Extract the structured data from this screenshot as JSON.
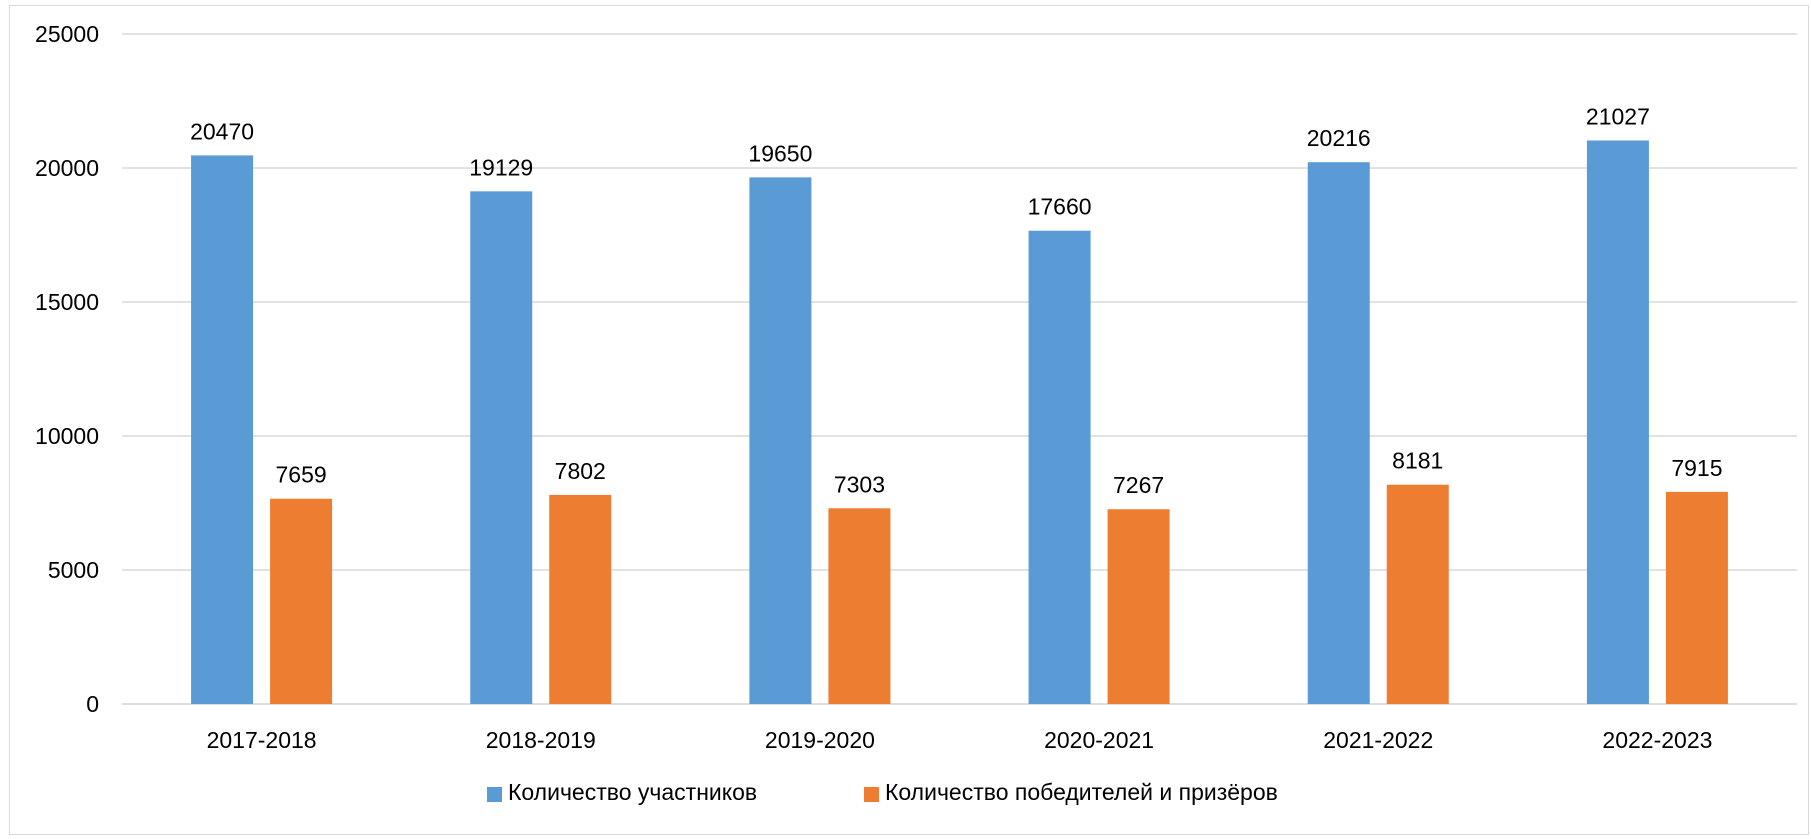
{
  "chart_data": {
    "type": "bar",
    "categories": [
      "2017-2018",
      "2018-2019",
      "2019-2020",
      "2020-2021",
      "2021-2022",
      "2022-2023"
    ],
    "series": [
      {
        "name": "Количество участников",
        "color": "#5b9bd5",
        "values": [
          20470,
          19129,
          19650,
          17660,
          20216,
          21027
        ]
      },
      {
        "name": "Количество победителей и призёров",
        "color": "#ed7d31",
        "values": [
          7659,
          7802,
          7303,
          7267,
          8181,
          7915
        ]
      }
    ],
    "ylim": [
      0,
      25000
    ],
    "yticks": [
      0,
      5000,
      10000,
      15000,
      20000,
      25000
    ],
    "grid": true,
    "legend_position": "bottom",
    "data_labels": true,
    "gridline_color": "#d9d9d9"
  }
}
